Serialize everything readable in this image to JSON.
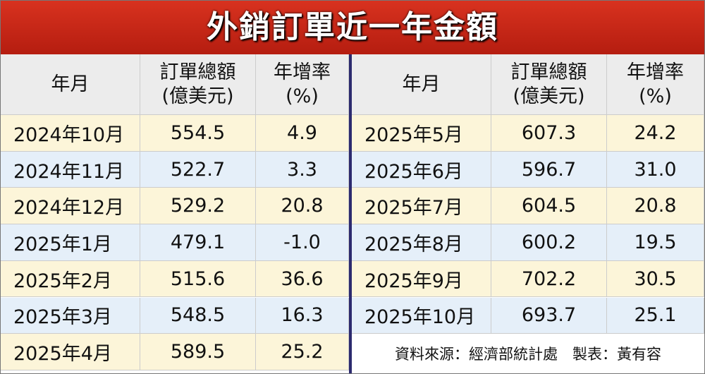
{
  "title": "外銷訂單近一年金額",
  "header": [
    [
      "年月"
    ],
    [
      "訂單總額",
      "(億美元)"
    ],
    [
      "年增率",
      "(%)"
    ]
  ],
  "left_rows": [
    [
      "2024年10月",
      "554.5",
      "4.9"
    ],
    [
      "2024年11月",
      "522.7",
      "3.3"
    ],
    [
      "2024年12月",
      "529.2",
      "20.8"
    ],
    [
      "2025年1月",
      "479.1",
      "-1.0"
    ],
    [
      "2025年2月",
      "515.6",
      "36.6"
    ],
    [
      "2025年3月",
      "548.5",
      "16.3"
    ],
    [
      "2025年4月",
      "589.5",
      "25.2"
    ]
  ],
  "right_rows": [
    [
      "2025年5月",
      "607.3",
      "24.2"
    ],
    [
      "2025年6月",
      "596.7",
      "31.0"
    ],
    [
      "2025年7月",
      "604.5",
      "20.8"
    ],
    [
      "2025年8月",
      "600.2",
      "19.5"
    ],
    [
      "2025年9月",
      "702.2",
      "30.5"
    ],
    [
      "2025年10月",
      "693.7",
      "25.1"
    ]
  ],
  "footer": "資料來源：經濟部統計處　製表：黃有容"
}
